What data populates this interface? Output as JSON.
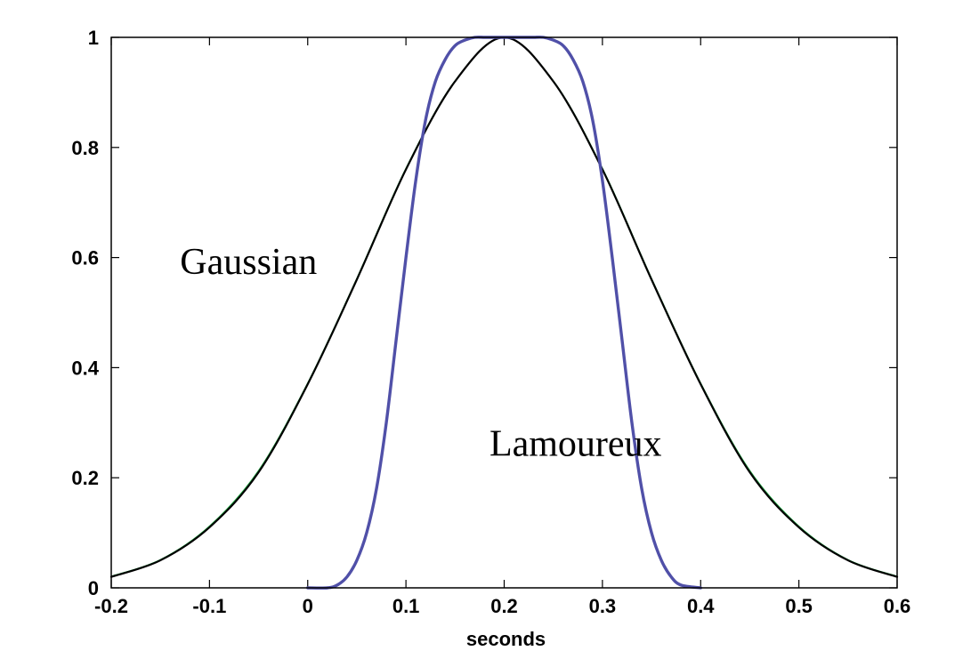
{
  "chart_data": {
    "type": "line",
    "title": "",
    "xlabel": "seconds",
    "ylabel": "",
    "xlim": [
      -0.2,
      0.6
    ],
    "ylim": [
      0,
      1
    ],
    "grid": false,
    "xticks": [
      "-0.2",
      "-0.1",
      "0",
      "0.1",
      "0.2",
      "0.3",
      "0.4",
      "0.5",
      "0.6"
    ],
    "yticks": [
      "0",
      "0.2",
      "0.4",
      "0.6",
      "0.8",
      "1"
    ],
    "annotations": [
      {
        "text": "Gaussian",
        "x": -0.13,
        "y": 0.57
      },
      {
        "text": "Lamoureux",
        "x": 0.185,
        "y": 0.24
      }
    ],
    "series": [
      {
        "color": "#000000",
        "x": [
          -0.2,
          -0.15,
          -0.1,
          -0.05,
          0,
          0.05,
          0.1,
          0.15,
          0.2,
          0.25,
          0.3,
          0.35,
          0.4,
          0.45,
          0.5,
          0.55,
          0.6
        ],
        "y": [
          0.02,
          0.05,
          0.11,
          0.21,
          0.37,
          0.56,
          0.76,
          0.92,
          1.0,
          0.92,
          0.76,
          0.56,
          0.37,
          0.21,
          0.11,
          0.05,
          0.02
        ]
      },
      {
        "color": "#22aa44",
        "x": [
          -0.2,
          -0.15,
          -0.1,
          -0.05,
          0,
          0.05,
          0.1,
          0.15,
          0.2,
          0.25,
          0.3,
          0.35,
          0.4,
          0.45,
          0.5,
          0.55,
          0.6
        ],
        "y": [
          0.021,
          0.051,
          0.112,
          0.213,
          0.372,
          0.562,
          0.762,
          0.921,
          1.0,
          0.921,
          0.762,
          0.562,
          0.372,
          0.213,
          0.112,
          0.051,
          0.021
        ]
      },
      {
        "color": "#5050a8",
        "x": [
          0,
          0.02,
          0.03,
          0.04,
          0.05,
          0.06,
          0.07,
          0.08,
          0.09,
          0.1,
          0.11,
          0.12,
          0.13,
          0.14,
          0.15,
          0.16,
          0.17,
          0.18,
          0.19,
          0.2,
          0.21,
          0.22,
          0.23,
          0.24,
          0.25,
          0.26,
          0.27,
          0.28,
          0.29,
          0.3,
          0.31,
          0.32,
          0.33,
          0.34,
          0.35,
          0.36,
          0.37,
          0.38,
          0.4
        ],
        "y": [
          0,
          0,
          0.005,
          0.02,
          0.05,
          0.1,
          0.18,
          0.3,
          0.45,
          0.6,
          0.74,
          0.85,
          0.92,
          0.96,
          0.985,
          0.995,
          1.0,
          1.0,
          1.0,
          1.0,
          1.0,
          1.0,
          1.0,
          1.0,
          0.995,
          0.985,
          0.96,
          0.92,
          0.85,
          0.74,
          0.6,
          0.45,
          0.3,
          0.18,
          0.1,
          0.05,
          0.02,
          0.005,
          0
        ]
      }
    ]
  }
}
